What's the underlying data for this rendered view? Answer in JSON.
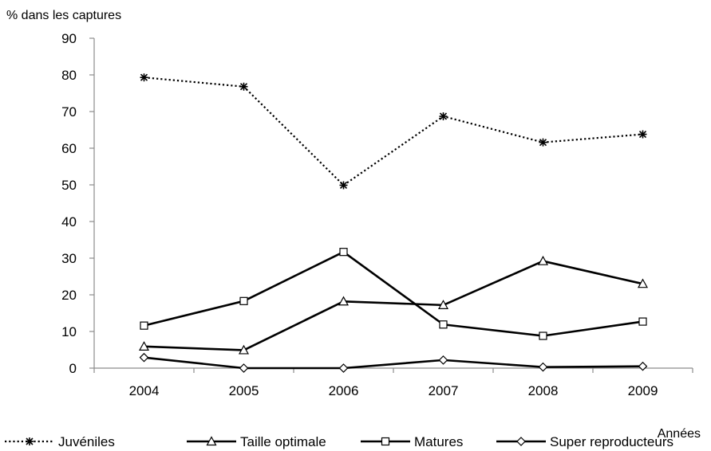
{
  "chart_data": {
    "type": "line",
    "ylabel": "% dans les captures",
    "xlabel": "Années",
    "categories": [
      "2004",
      "2005",
      "2006",
      "2007",
      "2008",
      "2009"
    ],
    "ylim": [
      0,
      90
    ],
    "yticks": [
      0,
      10,
      20,
      30,
      40,
      50,
      60,
      70,
      80,
      90
    ],
    "grid": false,
    "legend_position": "bottom",
    "series": [
      {
        "name": "Juvéniles",
        "marker": "asterisk",
        "line": "dotted",
        "values": [
          79.3,
          76.8,
          49.9,
          68.7,
          61.6,
          63.8
        ]
      },
      {
        "name": "Taille optimale",
        "marker": "triangle",
        "line": "solid",
        "values": [
          5.9,
          4.9,
          18.2,
          17.2,
          29.2,
          23.0
        ]
      },
      {
        "name": "Matures",
        "marker": "square",
        "line": "solid",
        "values": [
          11.6,
          18.3,
          31.7,
          11.9,
          8.8,
          12.7
        ]
      },
      {
        "name": "Super reproducteurs",
        "marker": "diamond",
        "line": "solid",
        "values": [
          2.9,
          0.0,
          0.0,
          2.2,
          0.3,
          0.5
        ]
      }
    ]
  }
}
